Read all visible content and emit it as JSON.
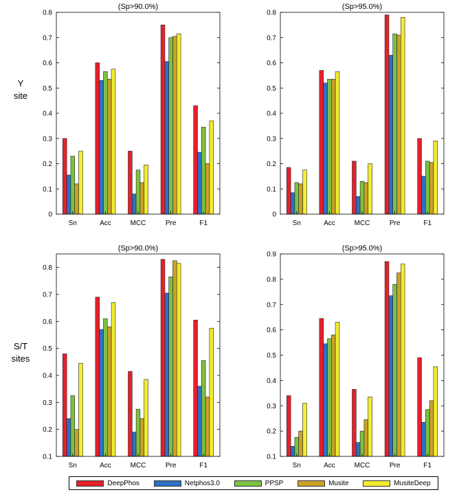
{
  "row_labels": [
    {
      "line1": "Y",
      "line2": "site"
    },
    {
      "line1": "S/T",
      "line2": "sites"
    }
  ],
  "legend": [
    {
      "name": "DeepPhos",
      "color": "#e8202a"
    },
    {
      "name": "Netphos3.0",
      "color": "#2f6fc6"
    },
    {
      "name": "PPSP",
      "color": "#7cc242"
    },
    {
      "name": "Musite",
      "color": "#c9a227"
    },
    {
      "name": "MusiteDeep",
      "color": "#f4ec2e"
    }
  ],
  "chart_data": [
    {
      "type": "bar",
      "title": "(Sp>90.0%)",
      "categories": [
        "Sn",
        "Acc",
        "MCC",
        "Pre",
        "F1"
      ],
      "ylim": [
        0,
        0.8
      ],
      "yticks": [
        "0",
        "0.1",
        "0.2",
        "0.3",
        "0.4",
        "0.5",
        "0.6",
        "0.7",
        "0.8"
      ],
      "series": [
        {
          "name": "DeepPhos",
          "values": [
            0.3,
            0.6,
            0.25,
            0.75,
            0.43
          ]
        },
        {
          "name": "Netphos3.0",
          "values": [
            0.155,
            0.53,
            0.08,
            0.605,
            0.245
          ]
        },
        {
          "name": "PPSP",
          "values": [
            0.23,
            0.565,
            0.175,
            0.7,
            0.345
          ]
        },
        {
          "name": "Musite",
          "values": [
            0.12,
            0.535,
            0.125,
            0.705,
            0.2
          ]
        },
        {
          "name": "MusiteDeep",
          "values": [
            0.25,
            0.575,
            0.195,
            0.715,
            0.37
          ]
        }
      ]
    },
    {
      "type": "bar",
      "title": "(Sp>95.0%)",
      "categories": [
        "Sn",
        "Acc",
        "MCC",
        "Pre",
        "F1"
      ],
      "ylim": [
        0,
        0.8
      ],
      "yticks": [
        "0",
        "0.1",
        "0.2",
        "0.3",
        "0.4",
        "0.5",
        "0.6",
        "0.7",
        "0.8"
      ],
      "series": [
        {
          "name": "DeepPhos",
          "values": [
            0.185,
            0.57,
            0.21,
            0.79,
            0.3
          ]
        },
        {
          "name": "Netphos3.0",
          "values": [
            0.085,
            0.52,
            0.07,
            0.63,
            0.15
          ]
        },
        {
          "name": "PPSP",
          "values": [
            0.125,
            0.535,
            0.13,
            0.715,
            0.21
          ]
        },
        {
          "name": "Musite",
          "values": [
            0.12,
            0.535,
            0.125,
            0.71,
            0.205
          ]
        },
        {
          "name": "MusiteDeep",
          "values": [
            0.175,
            0.565,
            0.2,
            0.78,
            0.29
          ]
        }
      ]
    },
    {
      "type": "bar",
      "title": "(Sp>90.0%)",
      "categories": [
        "Sn",
        "Acc",
        "MCC",
        "Pre",
        "F1"
      ],
      "ylim": [
        0.1,
        0.85
      ],
      "yticks": [
        "0.1",
        "0.2",
        "0.3",
        "0.4",
        "0.5",
        "0.6",
        "0.7",
        "0.8"
      ],
      "series": [
        {
          "name": "DeepPhos",
          "values": [
            0.48,
            0.69,
            0.415,
            0.83,
            0.605
          ]
        },
        {
          "name": "Netphos3.0",
          "values": [
            0.24,
            0.57,
            0.19,
            0.705,
            0.36
          ]
        },
        {
          "name": "PPSP",
          "values": [
            0.325,
            0.61,
            0.275,
            0.765,
            0.455
          ]
        },
        {
          "name": "Musite",
          "values": [
            0.2,
            0.58,
            0.24,
            0.825,
            0.32
          ]
        },
        {
          "name": "MusiteDeep",
          "values": [
            0.445,
            0.67,
            0.385,
            0.815,
            0.575
          ]
        }
      ]
    },
    {
      "type": "bar",
      "title": "(Sp>95.0%)",
      "categories": [
        "Sn",
        "Acc",
        "MCC",
        "Pre",
        "F1"
      ],
      "ylim": [
        0.1,
        0.9
      ],
      "yticks": [
        "0.1",
        "0.2",
        "0.3",
        "0.4",
        "0.5",
        "0.6",
        "0.7",
        "0.8",
        "0.9"
      ],
      "series": [
        {
          "name": "DeepPhos",
          "values": [
            0.34,
            0.645,
            0.365,
            0.87,
            0.49
          ]
        },
        {
          "name": "Netphos3.0",
          "values": [
            0.14,
            0.545,
            0.155,
            0.735,
            0.235
          ]
        },
        {
          "name": "PPSP",
          "values": [
            0.175,
            0.565,
            0.2,
            0.78,
            0.285
          ]
        },
        {
          "name": "Musite",
          "values": [
            0.2,
            0.58,
            0.245,
            0.825,
            0.32
          ]
        },
        {
          "name": "MusiteDeep",
          "values": [
            0.31,
            0.63,
            0.335,
            0.86,
            0.455
          ]
        }
      ]
    }
  ]
}
